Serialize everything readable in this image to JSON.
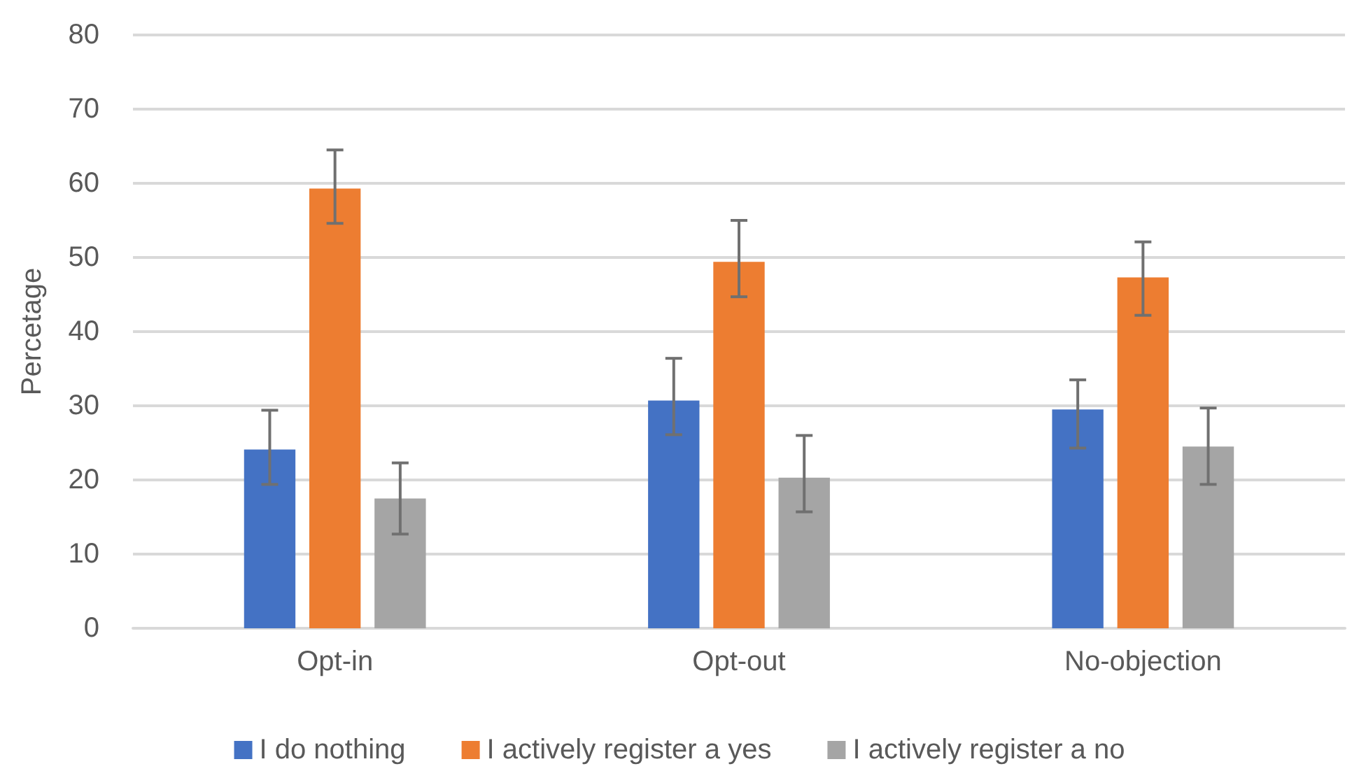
{
  "chart_data": {
    "type": "bar",
    "ylabel": "Percetage",
    "categories": [
      "Opt-in",
      "Opt-out",
      "No-objection"
    ],
    "series": [
      {
        "name": "I do nothing",
        "color": "#4472c4",
        "values": [
          24.1,
          30.7,
          29.5
        ],
        "errors": [
          [
            19.4,
            29.4
          ],
          [
            26.1,
            36.4
          ],
          [
            24.3,
            33.5
          ]
        ]
      },
      {
        "name": "I actively register a yes",
        "color": "#ed7d31",
        "values": [
          59.3,
          49.4,
          47.3
        ],
        "errors": [
          [
            54.6,
            64.5
          ],
          [
            44.7,
            55.0
          ],
          [
            42.2,
            52.1
          ]
        ]
      },
      {
        "name": "I actively register a no",
        "color": "#a5a5a5",
        "values": [
          17.5,
          20.3,
          24.5
        ],
        "errors": [
          [
            12.7,
            22.3
          ],
          [
            15.7,
            26.0
          ],
          [
            19.4,
            29.7
          ]
        ]
      }
    ],
    "ylim": [
      0,
      80
    ],
    "yticks": [
      0,
      10,
      20,
      30,
      40,
      50,
      60,
      70,
      80
    ],
    "grid": "y",
    "legend": "bottom"
  }
}
